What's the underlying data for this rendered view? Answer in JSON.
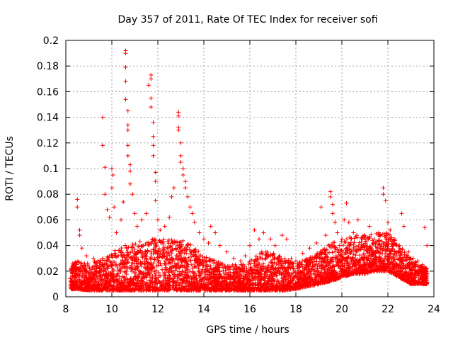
{
  "chart_data": {
    "type": "scatter",
    "title": "Day 357 of 2011, Rate Of TEC Index for receiver sofi",
    "xlabel": "GPS time / hours",
    "ylabel": "ROTI / TECUs",
    "xlim": [
      8,
      24
    ],
    "ylim": [
      0,
      0.2
    ],
    "xticks": [
      "8",
      "10",
      "12",
      "14",
      "16",
      "18",
      "20",
      "22",
      "24"
    ],
    "yticks": [
      "0",
      "0.02",
      "0.04",
      "0.06",
      "0.08",
      "0.1",
      "0.12",
      "0.14",
      "0.16",
      "0.18",
      "0.2"
    ],
    "grid": true,
    "marker": "plus",
    "color": "#ff0000",
    "series": [
      {
        "name": "",
        "points": [
          [
            8.3,
            0.026
          ],
          [
            8.5,
            0.076
          ],
          [
            8.5,
            0.07
          ],
          [
            8.6,
            0.052
          ],
          [
            8.6,
            0.048
          ],
          [
            8.7,
            0.038
          ],
          [
            8.9,
            0.032
          ],
          [
            9.2,
            0.03
          ],
          [
            9.4,
            0.028
          ],
          [
            9.6,
            0.14
          ],
          [
            9.6,
            0.118
          ],
          [
            9.7,
            0.101
          ],
          [
            9.7,
            0.08
          ],
          [
            9.8,
            0.068
          ],
          [
            9.9,
            0.062
          ],
          [
            10.0,
            0.1
          ],
          [
            10.0,
            0.085
          ],
          [
            10.05,
            0.095
          ],
          [
            10.1,
            0.07
          ],
          [
            10.2,
            0.05
          ],
          [
            10.4,
            0.06
          ],
          [
            10.5,
            0.074
          ],
          [
            10.6,
            0.192
          ],
          [
            10.6,
            0.19
          ],
          [
            10.6,
            0.179
          ],
          [
            10.6,
            0.168
          ],
          [
            10.6,
            0.154
          ],
          [
            10.7,
            0.145
          ],
          [
            10.7,
            0.134
          ],
          [
            10.7,
            0.13
          ],
          [
            10.7,
            0.118
          ],
          [
            10.7,
            0.11
          ],
          [
            10.8,
            0.103
          ],
          [
            10.8,
            0.098
          ],
          [
            10.8,
            0.088
          ],
          [
            10.9,
            0.08
          ],
          [
            11.0,
            0.065
          ],
          [
            11.1,
            0.055
          ],
          [
            11.3,
            0.06
          ],
          [
            11.5,
            0.065
          ],
          [
            11.6,
            0.165
          ],
          [
            11.7,
            0.173
          ],
          [
            11.7,
            0.17
          ],
          [
            11.7,
            0.155
          ],
          [
            11.7,
            0.148
          ],
          [
            11.8,
            0.136
          ],
          [
            11.8,
            0.125
          ],
          [
            11.8,
            0.118
          ],
          [
            11.8,
            0.11
          ],
          [
            11.9,
            0.097
          ],
          [
            11.9,
            0.09
          ],
          [
            11.9,
            0.075
          ],
          [
            12.0,
            0.06
          ],
          [
            12.1,
            0.052
          ],
          [
            12.3,
            0.055
          ],
          [
            12.5,
            0.062
          ],
          [
            12.6,
            0.078
          ],
          [
            12.7,
            0.085
          ],
          [
            12.9,
            0.144
          ],
          [
            12.9,
            0.141
          ],
          [
            12.9,
            0.132
          ],
          [
            12.9,
            0.13
          ],
          [
            13.0,
            0.12
          ],
          [
            13.0,
            0.11
          ],
          [
            13.0,
            0.105
          ],
          [
            13.1,
            0.1
          ],
          [
            13.1,
            0.095
          ],
          [
            13.2,
            0.09
          ],
          [
            13.2,
            0.085
          ],
          [
            13.3,
            0.078
          ],
          [
            13.4,
            0.07
          ],
          [
            13.5,
            0.065
          ],
          [
            13.6,
            0.058
          ],
          [
            13.8,
            0.05
          ],
          [
            14.0,
            0.045
          ],
          [
            14.2,
            0.042
          ],
          [
            14.3,
            0.055
          ],
          [
            14.5,
            0.05
          ],
          [
            14.7,
            0.04
          ],
          [
            15.0,
            0.035
          ],
          [
            15.3,
            0.03
          ],
          [
            15.6,
            0.028
          ],
          [
            15.8,
            0.032
          ],
          [
            16.0,
            0.04
          ],
          [
            16.2,
            0.052
          ],
          [
            16.4,
            0.045
          ],
          [
            16.6,
            0.05
          ],
          [
            16.9,
            0.045
          ],
          [
            17.1,
            0.04
          ],
          [
            17.4,
            0.048
          ],
          [
            17.6,
            0.045
          ],
          [
            17.8,
            0.03
          ],
          [
            18.0,
            0.028
          ],
          [
            18.3,
            0.034
          ],
          [
            18.6,
            0.038
          ],
          [
            18.9,
            0.042
          ],
          [
            19.1,
            0.07
          ],
          [
            19.3,
            0.048
          ],
          [
            19.5,
            0.082
          ],
          [
            19.5,
            0.078
          ],
          [
            19.6,
            0.072
          ],
          [
            19.6,
            0.065
          ],
          [
            19.7,
            0.058
          ],
          [
            19.8,
            0.05
          ],
          [
            20.0,
            0.045
          ],
          [
            20.1,
            0.06
          ],
          [
            20.2,
            0.073
          ],
          [
            20.3,
            0.058
          ],
          [
            20.5,
            0.05
          ],
          [
            20.7,
            0.06
          ],
          [
            21.0,
            0.048
          ],
          [
            21.2,
            0.055
          ],
          [
            21.4,
            0.045
          ],
          [
            21.6,
            0.05
          ],
          [
            21.8,
            0.085
          ],
          [
            21.8,
            0.08
          ],
          [
            21.9,
            0.075
          ],
          [
            22.0,
            0.058
          ],
          [
            22.1,
            0.052
          ],
          [
            22.3,
            0.045
          ],
          [
            22.5,
            0.04
          ],
          [
            22.6,
            0.065
          ],
          [
            22.7,
            0.055
          ],
          [
            22.9,
            0.035
          ],
          [
            23.1,
            0.03
          ],
          [
            23.3,
            0.028
          ],
          [
            23.5,
            0.025
          ],
          [
            23.6,
            0.054
          ],
          [
            23.7,
            0.04
          ]
        ]
      }
    ],
    "dense_band": [
      [
        8.2,
        0.006,
        0.024
      ],
      [
        8.5,
        0.006,
        0.028
      ],
      [
        9.0,
        0.005,
        0.026
      ],
      [
        9.5,
        0.005,
        0.03
      ],
      [
        10.0,
        0.005,
        0.035
      ],
      [
        10.5,
        0.005,
        0.04
      ],
      [
        11.0,
        0.005,
        0.042
      ],
      [
        11.5,
        0.005,
        0.045
      ],
      [
        12.0,
        0.005,
        0.045
      ],
      [
        12.5,
        0.005,
        0.045
      ],
      [
        13.0,
        0.005,
        0.045
      ],
      [
        13.5,
        0.005,
        0.04
      ],
      [
        14.0,
        0.005,
        0.032
      ],
      [
        14.5,
        0.005,
        0.028
      ],
      [
        15.0,
        0.005,
        0.025
      ],
      [
        15.5,
        0.005,
        0.025
      ],
      [
        16.0,
        0.005,
        0.028
      ],
      [
        16.5,
        0.005,
        0.035
      ],
      [
        17.0,
        0.005,
        0.035
      ],
      [
        17.5,
        0.005,
        0.03
      ],
      [
        18.0,
        0.006,
        0.026
      ],
      [
        18.5,
        0.008,
        0.03
      ],
      [
        19.0,
        0.01,
        0.035
      ],
      [
        19.5,
        0.012,
        0.042
      ],
      [
        20.0,
        0.015,
        0.045
      ],
      [
        20.5,
        0.018,
        0.048
      ],
      [
        21.0,
        0.018,
        0.048
      ],
      [
        21.5,
        0.02,
        0.05
      ],
      [
        22.0,
        0.02,
        0.05
      ],
      [
        22.5,
        0.015,
        0.04
      ],
      [
        23.0,
        0.01,
        0.03
      ],
      [
        23.5,
        0.01,
        0.024
      ],
      [
        23.7,
        0.01,
        0.022
      ]
    ]
  }
}
